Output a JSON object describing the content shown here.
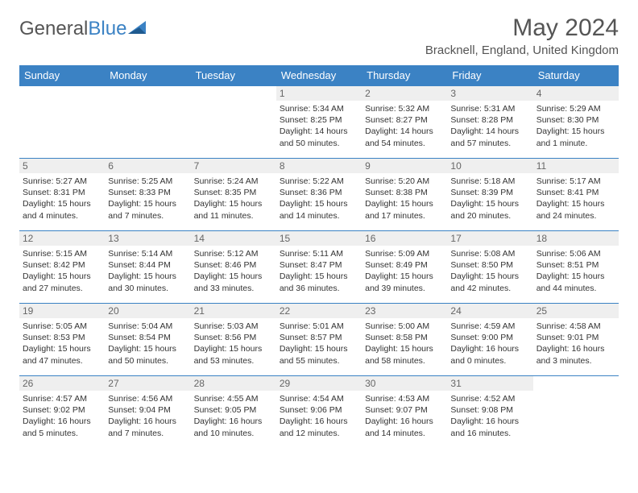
{
  "brand": {
    "part1": "General",
    "part2": "Blue"
  },
  "title": "May 2024",
  "location": "Bracknell, England, United Kingdom",
  "colors": {
    "header_bg": "#3b82c4",
    "header_text": "#ffffff",
    "daynum_bg": "#efefef",
    "grid_line": "#3b82c4",
    "text": "#333333"
  },
  "weekdays": [
    "Sunday",
    "Monday",
    "Tuesday",
    "Wednesday",
    "Thursday",
    "Friday",
    "Saturday"
  ],
  "weeks": [
    [
      {
        "n": "",
        "sr": "",
        "ss": "",
        "dl": ""
      },
      {
        "n": "",
        "sr": "",
        "ss": "",
        "dl": ""
      },
      {
        "n": "",
        "sr": "",
        "ss": "",
        "dl": ""
      },
      {
        "n": "1",
        "sr": "5:34 AM",
        "ss": "8:25 PM",
        "dl": "14 hours and 50 minutes."
      },
      {
        "n": "2",
        "sr": "5:32 AM",
        "ss": "8:27 PM",
        "dl": "14 hours and 54 minutes."
      },
      {
        "n": "3",
        "sr": "5:31 AM",
        "ss": "8:28 PM",
        "dl": "14 hours and 57 minutes."
      },
      {
        "n": "4",
        "sr": "5:29 AM",
        "ss": "8:30 PM",
        "dl": "15 hours and 1 minute."
      }
    ],
    [
      {
        "n": "5",
        "sr": "5:27 AM",
        "ss": "8:31 PM",
        "dl": "15 hours and 4 minutes."
      },
      {
        "n": "6",
        "sr": "5:25 AM",
        "ss": "8:33 PM",
        "dl": "15 hours and 7 minutes."
      },
      {
        "n": "7",
        "sr": "5:24 AM",
        "ss": "8:35 PM",
        "dl": "15 hours and 11 minutes."
      },
      {
        "n": "8",
        "sr": "5:22 AM",
        "ss": "8:36 PM",
        "dl": "15 hours and 14 minutes."
      },
      {
        "n": "9",
        "sr": "5:20 AM",
        "ss": "8:38 PM",
        "dl": "15 hours and 17 minutes."
      },
      {
        "n": "10",
        "sr": "5:18 AM",
        "ss": "8:39 PM",
        "dl": "15 hours and 20 minutes."
      },
      {
        "n": "11",
        "sr": "5:17 AM",
        "ss": "8:41 PM",
        "dl": "15 hours and 24 minutes."
      }
    ],
    [
      {
        "n": "12",
        "sr": "5:15 AM",
        "ss": "8:42 PM",
        "dl": "15 hours and 27 minutes."
      },
      {
        "n": "13",
        "sr": "5:14 AM",
        "ss": "8:44 PM",
        "dl": "15 hours and 30 minutes."
      },
      {
        "n": "14",
        "sr": "5:12 AM",
        "ss": "8:46 PM",
        "dl": "15 hours and 33 minutes."
      },
      {
        "n": "15",
        "sr": "5:11 AM",
        "ss": "8:47 PM",
        "dl": "15 hours and 36 minutes."
      },
      {
        "n": "16",
        "sr": "5:09 AM",
        "ss": "8:49 PM",
        "dl": "15 hours and 39 minutes."
      },
      {
        "n": "17",
        "sr": "5:08 AM",
        "ss": "8:50 PM",
        "dl": "15 hours and 42 minutes."
      },
      {
        "n": "18",
        "sr": "5:06 AM",
        "ss": "8:51 PM",
        "dl": "15 hours and 44 minutes."
      }
    ],
    [
      {
        "n": "19",
        "sr": "5:05 AM",
        "ss": "8:53 PM",
        "dl": "15 hours and 47 minutes."
      },
      {
        "n": "20",
        "sr": "5:04 AM",
        "ss": "8:54 PM",
        "dl": "15 hours and 50 minutes."
      },
      {
        "n": "21",
        "sr": "5:03 AM",
        "ss": "8:56 PM",
        "dl": "15 hours and 53 minutes."
      },
      {
        "n": "22",
        "sr": "5:01 AM",
        "ss": "8:57 PM",
        "dl": "15 hours and 55 minutes."
      },
      {
        "n": "23",
        "sr": "5:00 AM",
        "ss": "8:58 PM",
        "dl": "15 hours and 58 minutes."
      },
      {
        "n": "24",
        "sr": "4:59 AM",
        "ss": "9:00 PM",
        "dl": "16 hours and 0 minutes."
      },
      {
        "n": "25",
        "sr": "4:58 AM",
        "ss": "9:01 PM",
        "dl": "16 hours and 3 minutes."
      }
    ],
    [
      {
        "n": "26",
        "sr": "4:57 AM",
        "ss": "9:02 PM",
        "dl": "16 hours and 5 minutes."
      },
      {
        "n": "27",
        "sr": "4:56 AM",
        "ss": "9:04 PM",
        "dl": "16 hours and 7 minutes."
      },
      {
        "n": "28",
        "sr": "4:55 AM",
        "ss": "9:05 PM",
        "dl": "16 hours and 10 minutes."
      },
      {
        "n": "29",
        "sr": "4:54 AM",
        "ss": "9:06 PM",
        "dl": "16 hours and 12 minutes."
      },
      {
        "n": "30",
        "sr": "4:53 AM",
        "ss": "9:07 PM",
        "dl": "16 hours and 14 minutes."
      },
      {
        "n": "31",
        "sr": "4:52 AM",
        "ss": "9:08 PM",
        "dl": "16 hours and 16 minutes."
      },
      {
        "n": "",
        "sr": "",
        "ss": "",
        "dl": ""
      }
    ]
  ]
}
